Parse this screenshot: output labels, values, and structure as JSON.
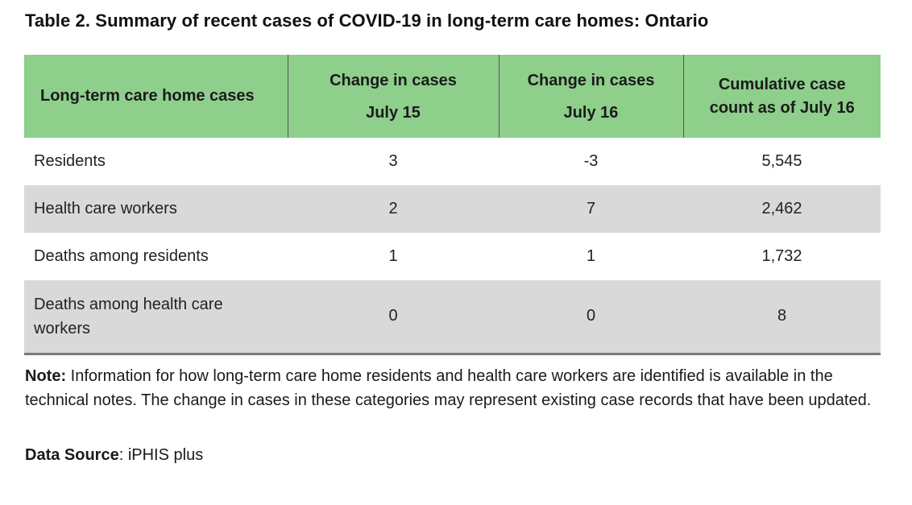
{
  "title": "Table 2. Summary of recent cases of COVID-19 in long-term care homes: Ontario",
  "table": {
    "headers": [
      {
        "line1": "Long-term care home cases",
        "line2": ""
      },
      {
        "line1": "Change in cases",
        "line2": "July 15"
      },
      {
        "line1": "Change in cases",
        "line2": "July 16"
      },
      {
        "line1": "Cumulative case",
        "line2": "count as of July 16"
      }
    ],
    "rows": [
      {
        "label": "Residents",
        "jul15": "3",
        "jul16": "-3",
        "cumulative": "5,545"
      },
      {
        "label": "Health care workers",
        "jul15": "2",
        "jul16": "7",
        "cumulative": "2,462"
      },
      {
        "label": "Deaths among residents",
        "jul15": "1",
        "jul16": "1",
        "cumulative": "1,732"
      },
      {
        "label": "Deaths among health care workers",
        "jul15": "0",
        "jul16": "0",
        "cumulative": "8"
      }
    ]
  },
  "note": {
    "label": "Note:",
    "text": " Information for how long-term care home residents and health care workers are identified is available in the technical notes. The change in cases in these categories may represent existing case records that have been updated."
  },
  "source": {
    "label": "Data Source",
    "text": ": iPHIS plus"
  },
  "colors": {
    "header_bg": "#8ecf8b",
    "shaded_row_bg": "#d9d9d9"
  }
}
